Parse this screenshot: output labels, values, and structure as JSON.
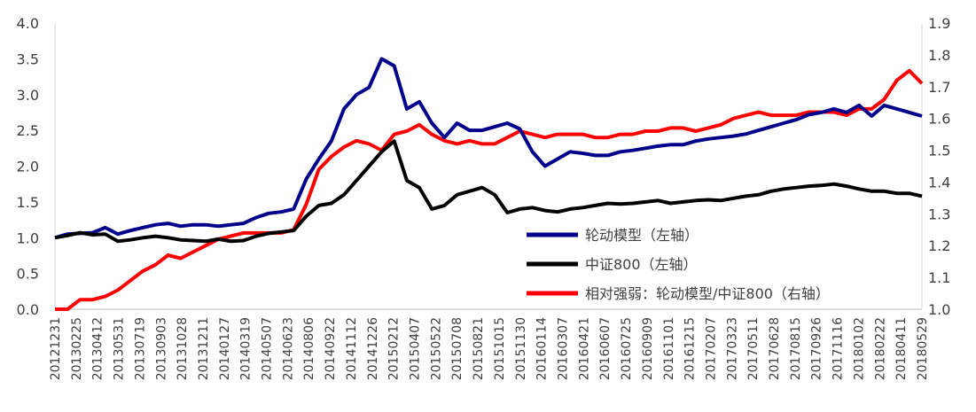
{
  "chart_data": {
    "type": "line",
    "title": "",
    "left_axis": {
      "min": 0.0,
      "max": 4.0,
      "step": 0.5,
      "ticks": [
        "0.0",
        "0.5",
        "1.0",
        "1.5",
        "2.0",
        "2.5",
        "3.0",
        "3.5",
        "4.0"
      ]
    },
    "right_axis": {
      "min": 1.0,
      "max": 1.9,
      "step": 0.1,
      "ticks": [
        "1.0",
        "1.1",
        "1.2",
        "1.3",
        "1.4",
        "1.5",
        "1.6",
        "1.7",
        "1.8",
        "1.9"
      ]
    },
    "x_tick_labels": [
      "20121231",
      "20130225",
      "20130412",
      "20130531",
      "20130719",
      "20130903",
      "20131028",
      "20131211",
      "20140127",
      "20140319",
      "20140507",
      "20140623",
      "20140806",
      "20140922",
      "20141112",
      "20141226",
      "20150212",
      "20150407",
      "20150522",
      "20150708",
      "20150821",
      "20151015",
      "20151130",
      "20160114",
      "20160307",
      "20160421",
      "20160607",
      "20160725",
      "20160909",
      "20161101",
      "20161215",
      "20170207",
      "20170323",
      "20170511",
      "20170628",
      "20170815",
      "20170926",
      "20171116",
      "20180102",
      "20180222",
      "20180411",
      "20180529"
    ],
    "legend_position": "center-right",
    "grid": false,
    "series": [
      {
        "name": "轮动模型（左轴）",
        "axis": "left",
        "color": "#00008B",
        "values": [
          1.0,
          1.05,
          1.06,
          1.07,
          1.14,
          1.05,
          1.1,
          1.14,
          1.18,
          1.2,
          1.16,
          1.18,
          1.18,
          1.16,
          1.18,
          1.2,
          1.28,
          1.34,
          1.36,
          1.4,
          1.82,
          2.1,
          2.35,
          2.8,
          3.0,
          3.1,
          3.5,
          3.4,
          2.8,
          2.9,
          2.6,
          2.4,
          2.6,
          2.5,
          2.5,
          2.55,
          2.6,
          2.52,
          2.2,
          2.0,
          2.1,
          2.2,
          2.18,
          2.15,
          2.15,
          2.2,
          2.22,
          2.25,
          2.28,
          2.3,
          2.3,
          2.35,
          2.38,
          2.4,
          2.42,
          2.45,
          2.5,
          2.55,
          2.6,
          2.65,
          2.72,
          2.75,
          2.8,
          2.75,
          2.85,
          2.7,
          2.85,
          2.8,
          2.75,
          2.7
        ]
      },
      {
        "name": "中证800（左轴）",
        "axis": "left",
        "color": "#000000",
        "values": [
          1.0,
          1.03,
          1.07,
          1.04,
          1.05,
          0.95,
          0.97,
          1.0,
          1.02,
          1.0,
          0.97,
          0.96,
          0.95,
          0.98,
          0.95,
          0.96,
          1.02,
          1.06,
          1.08,
          1.1,
          1.3,
          1.45,
          1.48,
          1.6,
          1.8,
          2.0,
          2.2,
          2.35,
          1.8,
          1.7,
          1.4,
          1.45,
          1.6,
          1.65,
          1.7,
          1.6,
          1.35,
          1.4,
          1.42,
          1.38,
          1.36,
          1.4,
          1.42,
          1.45,
          1.48,
          1.47,
          1.48,
          1.5,
          1.52,
          1.48,
          1.5,
          1.52,
          1.53,
          1.52,
          1.55,
          1.58,
          1.6,
          1.65,
          1.68,
          1.7,
          1.72,
          1.73,
          1.75,
          1.72,
          1.68,
          1.65,
          1.65,
          1.62,
          1.62,
          1.58
        ]
      },
      {
        "name": "相对强弱：轮动模型/中证800（右轴）",
        "axis": "right",
        "color": "#FF0000",
        "values": [
          1.0,
          1.0,
          1.03,
          1.03,
          1.04,
          1.06,
          1.09,
          1.12,
          1.14,
          1.17,
          1.16,
          1.18,
          1.2,
          1.22,
          1.23,
          1.24,
          1.24,
          1.24,
          1.24,
          1.25,
          1.33,
          1.44,
          1.48,
          1.51,
          1.53,
          1.52,
          1.5,
          1.55,
          1.56,
          1.58,
          1.55,
          1.53,
          1.52,
          1.53,
          1.52,
          1.52,
          1.54,
          1.56,
          1.55,
          1.54,
          1.55,
          1.55,
          1.55,
          1.54,
          1.54,
          1.55,
          1.55,
          1.56,
          1.56,
          1.57,
          1.57,
          1.56,
          1.57,
          1.58,
          1.6,
          1.61,
          1.62,
          1.61,
          1.61,
          1.61,
          1.62,
          1.62,
          1.62,
          1.61,
          1.63,
          1.63,
          1.66,
          1.72,
          1.75,
          1.71
        ]
      }
    ]
  }
}
